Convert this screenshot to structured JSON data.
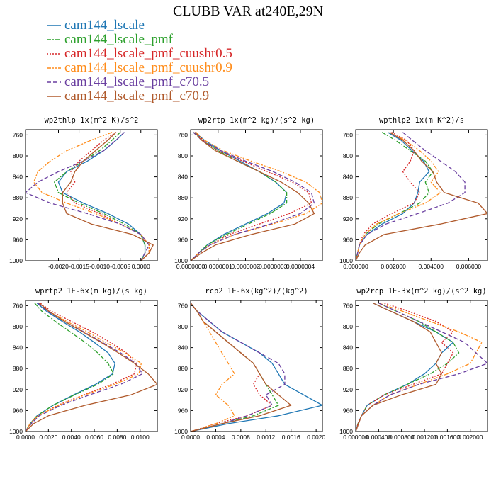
{
  "figure_title": "CLUBB VAR at240E,29N",
  "legend": [
    {
      "label": "cam144_lscale",
      "color": "#1f77b4",
      "dash": "solid"
    },
    {
      "label": "cam144_lscale_pmf",
      "color": "#2ca02c",
      "dash": "dashdot"
    },
    {
      "label": "cam144_lscale_pmf_cuushr0.5",
      "color": "#d62728",
      "dash": "dotted"
    },
    {
      "label": "cam144_lscale_pmf_cuushr0.9",
      "color": "#ff8c1a",
      "dash": "dashdotdot"
    },
    {
      "label": "cam144_lscale_pmf_c70.5",
      "color": "#6a3fa0",
      "dash": "dashed"
    },
    {
      "label": "cam144_lscale_pmf_c70.9",
      "color": "#b05a2c",
      "dash": "solid"
    }
  ],
  "chart_data": [
    {
      "type": "line",
      "title": "wp2thlp  1x(m^2 K)/s^2",
      "xlim": [
        -0.0028,
        0.0004
      ],
      "ylim": [
        1000,
        750
      ],
      "yticks": [
        760,
        800,
        840,
        880,
        920,
        960,
        1000
      ],
      "xticks": [
        -0.002,
        -0.0015,
        -0.001,
        -0.0005,
        0.0
      ],
      "xtick_labels": [
        "-0.0020",
        "-0.0015",
        "-0.0010",
        "-0.0005",
        "0.0000"
      ],
      "y": [
        755,
        770,
        790,
        810,
        830,
        850,
        870,
        890,
        910,
        930,
        950,
        970,
        985,
        1000
      ],
      "series": [
        {
          "name": "cam144_lscale",
          "values": [
            -0.0004,
            -0.0006,
            -0.0009,
            -0.0013,
            -0.0018,
            -0.002,
            -0.0019,
            -0.0014,
            -0.0008,
            -0.0003,
            0.0,
            0.0001,
            0.0001,
            0.0
          ]
        },
        {
          "name": "cam144_lscale_pmf",
          "values": [
            -0.0005,
            -0.0007,
            -0.001,
            -0.0014,
            -0.0018,
            -0.0021,
            -0.002,
            -0.0015,
            -0.0009,
            -0.0004,
            0.0,
            0.0001,
            0.0001,
            0.0
          ]
        },
        {
          "name": "cam144_lscale_pmf_cuushr0.5",
          "values": [
            -0.0006,
            -0.0009,
            -0.0012,
            -0.0015,
            -0.0017,
            -0.0016,
            -0.0018,
            -0.0016,
            -0.001,
            -0.0005,
            0.0,
            0.0002,
            0.0002,
            0.0
          ]
        },
        {
          "name": "cam144_lscale_pmf_cuushr0.9",
          "values": [
            -0.0007,
            -0.0012,
            -0.0018,
            -0.0022,
            -0.0025,
            -0.0026,
            -0.0024,
            -0.0018,
            -0.0011,
            -0.0005,
            0.0,
            0.0002,
            0.0002,
            0.0
          ]
        },
        {
          "name": "cam144_lscale_pmf_c70.5",
          "values": [
            -0.0004,
            -0.0006,
            -0.0009,
            -0.0014,
            -0.002,
            -0.0025,
            -0.0028,
            -0.0022,
            -0.0013,
            -0.0005,
            0.0,
            0.0002,
            0.0001,
            0.0
          ]
        },
        {
          "name": "cam144_lscale_pmf_c70.9",
          "values": [
            -0.0006,
            -0.0008,
            -0.0011,
            -0.0014,
            -0.0016,
            -0.0017,
            -0.0019,
            -0.0019,
            -0.0018,
            -0.0012,
            -0.0002,
            0.0003,
            0.0002,
            0.0
          ]
        }
      ]
    },
    {
      "type": "line",
      "title": "wp2rtp  1x(m^2 kg)/(s^2 kg)",
      "xlim": [
        0.0,
        4.8e-07
      ],
      "ylim": [
        1000,
        750
      ],
      "yticks": [
        760,
        800,
        840,
        880,
        920,
        960,
        1000
      ],
      "xticks": [
        0.0,
        1e-07,
        2e-07,
        3e-07,
        4e-07
      ],
      "xtick_labels": [
        "0.0000000",
        "0.0000001",
        "0.0000002",
        "0.0000003",
        "0.0000004"
      ],
      "y": [
        755,
        770,
        790,
        810,
        830,
        850,
        870,
        890,
        910,
        930,
        950,
        970,
        985,
        1000
      ],
      "series": [
        {
          "name": "cam144_lscale",
          "values": [
            1.5e-08,
            5e-08,
            1.1e-07,
            1.8e-07,
            2.5e-07,
            3.1e-07,
            3.5e-07,
            3.4e-07,
            2.8e-07,
            2e-07,
            1.2e-07,
            6e-08,
            3e-08,
            0.0
          ]
        },
        {
          "name": "cam144_lscale_pmf",
          "values": [
            1e-08,
            4e-08,
            1e-07,
            1.7e-07,
            2.5e-07,
            3.1e-07,
            3.5e-07,
            3.5e-07,
            2.9e-07,
            2.1e-07,
            1.3e-07,
            6e-08,
            3e-08,
            0.0
          ]
        },
        {
          "name": "cam144_lscale_pmf_cuushr0.5",
          "values": [
            1.5e-08,
            4.5e-08,
            1e-07,
            1.9e-07,
            2.8e-07,
            3.7e-07,
            4.3e-07,
            4.4e-07,
            3.6e-07,
            2.5e-07,
            1.4e-07,
            7e-08,
            3e-08,
            0.0
          ]
        },
        {
          "name": "cam144_lscale_pmf_cuushr0.9",
          "values": [
            2e-08,
            5e-08,
            1.2e-07,
            2.2e-07,
            3.3e-07,
            4.2e-07,
            4.7e-07,
            4.8e-07,
            4.2e-07,
            3e-07,
            1.6e-07,
            7e-08,
            3e-08,
            0.0
          ]
        },
        {
          "name": "cam144_lscale_pmf_c70.5",
          "values": [
            1e-08,
            4e-08,
            1.1e-07,
            2e-07,
            3e-07,
            3.8e-07,
            4.4e-07,
            4.5e-07,
            4e-07,
            2.9e-07,
            1.6e-07,
            7e-08,
            3e-08,
            0.0
          ]
        },
        {
          "name": "cam144_lscale_pmf_c70.9",
          "values": [
            1.5e-08,
            4e-08,
            9e-08,
            1.7e-07,
            2.5e-07,
            3.3e-07,
            3.9e-07,
            4.3e-07,
            4.5e-07,
            3.8e-07,
            2.2e-07,
            9e-08,
            4e-08,
            0.0
          ]
        }
      ]
    },
    {
      "type": "line",
      "title": "wpthlp2  1x(m K^2)/s",
      "xlim": [
        0.0,
        0.007
      ],
      "ylim": [
        1000,
        750
      ],
      "yticks": [
        760,
        800,
        840,
        880,
        920,
        960,
        1000
      ],
      "xticks": [
        0.0,
        0.002,
        0.004,
        0.006
      ],
      "xtick_labels": [
        "0.000000",
        "0.002000",
        "0.004000",
        "0.006000"
      ],
      "y": [
        755,
        770,
        790,
        810,
        830,
        850,
        870,
        890,
        910,
        930,
        950,
        970,
        985,
        1000
      ],
      "series": [
        {
          "name": "cam144_lscale",
          "values": [
            0.0017,
            0.0024,
            0.003,
            0.0036,
            0.0039,
            0.0034,
            0.0033,
            0.0031,
            0.0025,
            0.0014,
            0.0006,
            0.0002,
            0.0001,
            0.0
          ]
        },
        {
          "name": "cam144_lscale_pmf",
          "values": [
            0.0014,
            0.0021,
            0.0029,
            0.0037,
            0.0041,
            0.0037,
            0.0039,
            0.0034,
            0.0023,
            0.0012,
            0.0005,
            0.0002,
            0.0001,
            0.0
          ]
        },
        {
          "name": "cam144_lscale_pmf_cuushr0.5",
          "values": [
            0.0019,
            0.0027,
            0.0031,
            0.0029,
            0.0025,
            0.0029,
            0.0034,
            0.0031,
            0.0019,
            0.0009,
            0.0004,
            0.0002,
            0.0001,
            0.0
          ]
        },
        {
          "name": "cam144_lscale_pmf_cuushr0.9",
          "values": [
            0.0018,
            0.0026,
            0.0034,
            0.004,
            0.0044,
            0.004,
            0.0045,
            0.0037,
            0.0023,
            0.0011,
            0.0005,
            0.0002,
            0.0001,
            0.0
          ]
        },
        {
          "name": "cam144_lscale_pmf_c70.5",
          "values": [
            0.0025,
            0.003,
            0.0037,
            0.0045,
            0.0053,
            0.0058,
            0.0058,
            0.0049,
            0.0033,
            0.0016,
            0.0006,
            0.0002,
            0.0001,
            0.0
          ]
        },
        {
          "name": "cam144_lscale_pmf_c70.9",
          "values": [
            0.0018,
            0.0025,
            0.0031,
            0.0035,
            0.0041,
            0.0043,
            0.0047,
            0.0065,
            0.007,
            0.0045,
            0.0015,
            0.0005,
            0.0002,
            0.0
          ]
        }
      ]
    },
    {
      "type": "line",
      "title": "wprtp2  1E-6x(m kg)/(s kg)",
      "xlim": [
        0.0,
        0.0115
      ],
      "ylim": [
        1000,
        750
      ],
      "yticks": [
        760,
        800,
        840,
        880,
        920,
        960,
        1000
      ],
      "xticks": [
        0.0,
        0.002,
        0.004,
        0.006,
        0.008,
        0.01
      ],
      "xtick_labels": [
        "0.0000",
        "0.0020",
        "0.0040",
        "0.0060",
        "0.0080",
        "0.0100"
      ],
      "y": [
        755,
        770,
        790,
        810,
        830,
        850,
        870,
        890,
        910,
        930,
        950,
        970,
        985,
        1000
      ],
      "series": [
        {
          "name": "cam144_lscale",
          "values": [
            0.001,
            0.0018,
            0.0032,
            0.0047,
            0.006,
            0.0072,
            0.0078,
            0.0076,
            0.0061,
            0.0042,
            0.0024,
            0.001,
            0.0004,
            0.0
          ]
        },
        {
          "name": "cam144_lscale_pmf",
          "values": [
            0.0008,
            0.0014,
            0.0026,
            0.0039,
            0.0052,
            0.0063,
            0.0072,
            0.0077,
            0.0063,
            0.0043,
            0.0024,
            0.001,
            0.0004,
            0.0
          ]
        },
        {
          "name": "cam144_lscale_pmf_cuushr0.5",
          "values": [
            0.0013,
            0.0022,
            0.004,
            0.0058,
            0.0074,
            0.0088,
            0.0097,
            0.0095,
            0.0075,
            0.0051,
            0.0028,
            0.0011,
            0.0004,
            0.0
          ]
        },
        {
          "name": "cam144_lscale_pmf_cuushr0.9",
          "values": [
            0.0012,
            0.002,
            0.0036,
            0.0054,
            0.007,
            0.0087,
            0.0101,
            0.0099,
            0.0078,
            0.0052,
            0.0029,
            0.0011,
            0.0004,
            0.0
          ]
        },
        {
          "name": "cam144_lscale_pmf_c70.5",
          "values": [
            0.0011,
            0.0019,
            0.0034,
            0.0051,
            0.0067,
            0.0083,
            0.0096,
            0.0102,
            0.0083,
            0.0056,
            0.0031,
            0.0012,
            0.0005,
            0.0
          ]
        },
        {
          "name": "cam144_lscale_pmf_c70.9",
          "values": [
            0.0012,
            0.002,
            0.0034,
            0.005,
            0.0066,
            0.0081,
            0.0095,
            0.0107,
            0.0115,
            0.0092,
            0.0052,
            0.002,
            0.0007,
            0.0
          ]
        }
      ]
    },
    {
      "type": "line",
      "title": "rcp2  1E-6x(kg^2)/(kg^2)",
      "xlim": [
        0.0,
        0.0021
      ],
      "ylim": [
        1000,
        750
      ],
      "yticks": [
        760,
        800,
        840,
        880,
        920,
        960,
        1000
      ],
      "xticks": [
        0.0,
        0.0004,
        0.0008,
        0.0012,
        0.0016,
        0.002
      ],
      "xtick_labels": [
        "0.0000",
        "0.0004",
        "0.0008",
        "0.0012",
        "0.0016",
        "0.0020"
      ],
      "y": [
        755,
        770,
        790,
        810,
        830,
        850,
        870,
        890,
        910,
        930,
        950,
        970,
        985,
        1000
      ],
      "series": [
        {
          "name": "cam144_lscale",
          "values": [
            0.0,
            0.0001,
            0.0003,
            0.0005,
            0.0008,
            0.0011,
            0.0013,
            0.0014,
            0.0015,
            0.0018,
            0.0021,
            0.0014,
            0.0006,
            0.0
          ]
        },
        {
          "name": "cam144_lscale_pmf",
          "values": [
            0.0,
            0.0001,
            0.0002,
            0.0004,
            0.0006,
            0.0008,
            0.001,
            0.0011,
            0.0012,
            0.0013,
            0.0014,
            0.001,
            0.0005,
            0.0
          ]
        },
        {
          "name": "cam144_lscale_pmf_cuushr0.5",
          "values": [
            0.0,
            0.0001,
            0.0002,
            0.0004,
            0.0006,
            0.0008,
            0.001,
            0.0011,
            0.001,
            0.0011,
            0.0013,
            0.0009,
            0.0004,
            0.0
          ]
        },
        {
          "name": "cam144_lscale_pmf_cuushr0.9",
          "values": [
            0.0,
            0.0001,
            0.0002,
            0.0003,
            0.0004,
            0.0005,
            0.0006,
            0.0007,
            0.0005,
            0.0004,
            0.0006,
            0.0007,
            0.0004,
            0.0
          ]
        },
        {
          "name": "cam144_lscale_pmf_c70.5",
          "values": [
            0.0,
            0.0001,
            0.0003,
            0.0005,
            0.0008,
            0.0011,
            0.0014,
            0.0015,
            0.0015,
            0.0012,
            0.0013,
            0.0009,
            0.0005,
            0.0
          ]
        },
        {
          "name": "cam144_lscale_pmf_c70.9",
          "values": [
            0.0,
            0.0001,
            0.0002,
            0.0004,
            0.0006,
            0.0008,
            0.001,
            0.0011,
            0.0012,
            0.0014,
            0.0016,
            0.0011,
            0.0005,
            0.0
          ]
        }
      ]
    },
    {
      "type": "line",
      "title": "wp2rcp  1E-3x(m^2 kg)/(s^2 kg)",
      "xlim": [
        0.0,
        0.0023
      ],
      "ylim": [
        1000,
        750
      ],
      "yticks": [
        760,
        800,
        840,
        880,
        920,
        960,
        1000
      ],
      "xticks": [
        0.0,
        0.0004,
        0.0008,
        0.0012,
        0.0016,
        0.002
      ],
      "xtick_labels": [
        "0.000000",
        "0.000400",
        "0.000800",
        "0.001200",
        "0.001600",
        "0.002000"
      ],
      "y": [
        755,
        770,
        790,
        810,
        830,
        850,
        870,
        890,
        910,
        930,
        950,
        970,
        985,
        1000
      ],
      "series": [
        {
          "name": "cam144_lscale",
          "values": [
            0.0003,
            0.0006,
            0.001,
            0.0014,
            0.0017,
            0.0015,
            0.0014,
            0.0012,
            0.0009,
            0.0005,
            0.0002,
            0.0001,
            4e-05,
            0.0
          ]
        },
        {
          "name": "cam144_lscale_pmf",
          "values": [
            0.0004,
            0.0007,
            0.0011,
            0.0014,
            0.0017,
            0.0018,
            0.0016,
            0.0013,
            0.0009,
            0.0005,
            0.0002,
            0.0001,
            4e-05,
            0.0
          ]
        },
        {
          "name": "cam144_lscale_pmf_cuushr0.5",
          "values": [
            0.0005,
            0.0009,
            0.0014,
            0.0017,
            0.0015,
            0.0017,
            0.0016,
            0.0015,
            0.001,
            0.0005,
            0.0002,
            0.0001,
            4e-05,
            0.0
          ]
        },
        {
          "name": "cam144_lscale_pmf_cuushr0.9",
          "values": [
            0.0004,
            0.0008,
            0.0013,
            0.0018,
            0.0022,
            0.0021,
            0.002,
            0.0016,
            0.0011,
            0.0006,
            0.0003,
            0.0001,
            5e-05,
            0.0
          ]
        },
        {
          "name": "cam144_lscale_pmf_c70.5",
          "values": [
            0.0004,
            0.0007,
            0.0011,
            0.0015,
            0.0019,
            0.0021,
            0.0023,
            0.0018,
            0.0011,
            0.0006,
            0.0003,
            0.0001,
            5e-05,
            0.0
          ]
        },
        {
          "name": "cam144_lscale_pmf_c70.9",
          "values": [
            0.0003,
            0.0006,
            0.001,
            0.0013,
            0.0014,
            0.0015,
            0.0014,
            0.0015,
            0.0014,
            0.0008,
            0.0003,
            0.0001,
            5e-05,
            0.0
          ]
        }
      ]
    }
  ]
}
